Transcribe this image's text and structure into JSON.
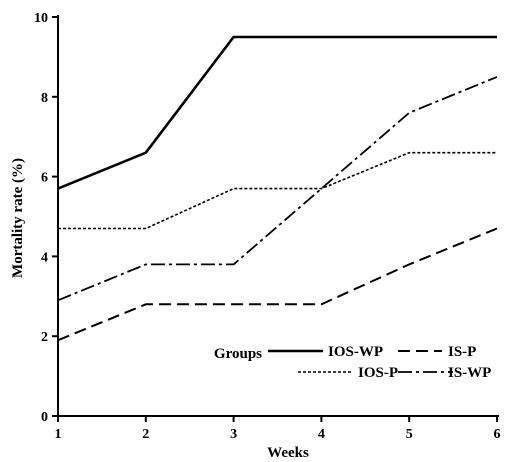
{
  "chart_data": {
    "type": "line",
    "xlabel": "Weeks",
    "ylabel": "Mortality rate (%)",
    "x": [
      1,
      2,
      3,
      4,
      5,
      6
    ],
    "xlim": [
      1,
      6
    ],
    "ylim": [
      0,
      10
    ],
    "xticks": [
      "1",
      "2",
      "3",
      "4",
      "5",
      "6"
    ],
    "yticks": [
      "0",
      "2",
      "4",
      "6",
      "8",
      "10"
    ],
    "grid": false,
    "legend_title": "Groups",
    "legend_position": "bottom-right",
    "series": [
      {
        "name": "IOS-WP",
        "style": "solid",
        "color": "#000000",
        "values": [
          5.7,
          6.6,
          9.5,
          9.5,
          9.5,
          9.5
        ]
      },
      {
        "name": "IS-P",
        "style": "dashed",
        "color": "#000000",
        "values": [
          1.9,
          2.8,
          2.8,
          2.8,
          3.8,
          4.7
        ]
      },
      {
        "name": "IOS-P",
        "style": "dotted",
        "color": "#000000",
        "values": [
          4.7,
          4.7,
          5.7,
          5.7,
          6.6,
          6.6
        ]
      },
      {
        "name": "IS-WP",
        "style": "dashdot",
        "color": "#000000",
        "values": [
          2.9,
          3.8,
          3.8,
          5.7,
          7.6,
          8.5
        ]
      }
    ]
  }
}
